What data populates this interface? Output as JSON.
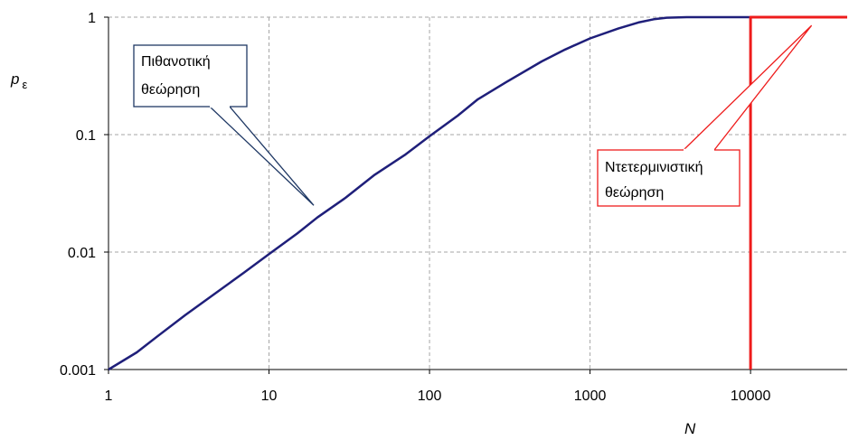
{
  "chart_data": {
    "type": "line",
    "x_scale": "log",
    "y_scale": "log",
    "xlim": [
      1,
      40000
    ],
    "ylim": [
      0.001,
      1
    ],
    "grid": true,
    "xlabel": "N",
    "ylabel_main": "p",
    "ylabel_sub": "ε",
    "x_ticks": [
      "1",
      "10",
      "100",
      "1000",
      "10000"
    ],
    "y_ticks": [
      "1",
      "0.1",
      "0.01",
      "0.001"
    ],
    "series": [
      {
        "label": "Πιθανοτική θεώρηση",
        "color": "#1f1f7a",
        "x": [
          1,
          1.5,
          2,
          3,
          5,
          7,
          10,
          15,
          20,
          30,
          45,
          70,
          100,
          150,
          200,
          300,
          500,
          700,
          1000,
          1500,
          2000,
          2500,
          3000,
          4000,
          5000,
          10000,
          40000
        ],
        "y": [
          0.001,
          0.0014,
          0.0019,
          0.0029,
          0.0048,
          0.0067,
          0.0096,
          0.0144,
          0.0197,
          0.029,
          0.045,
          0.067,
          0.097,
          0.145,
          0.2,
          0.28,
          0.42,
          0.53,
          0.66,
          0.8,
          0.9,
          0.96,
          0.99,
          1,
          1,
          1,
          1
        ]
      },
      {
        "label": "Ντετερμινιστική θεώρηση",
        "color": "#ee1c1c",
        "x": [
          10000,
          10000,
          40000
        ],
        "y": [
          0.001,
          1,
          1
        ]
      }
    ],
    "callouts": [
      {
        "text_lines": [
          "Πιθανοτική",
          "θεώρηση"
        ],
        "border_color": "#1f3864",
        "target_x": 19,
        "target_y": 0.025
      },
      {
        "text_lines": [
          "Ντετερμινιστική",
          "θεώρηση"
        ],
        "border_color": "#ee1c1c",
        "target_x": 24000,
        "target_y": 0.85
      }
    ]
  }
}
